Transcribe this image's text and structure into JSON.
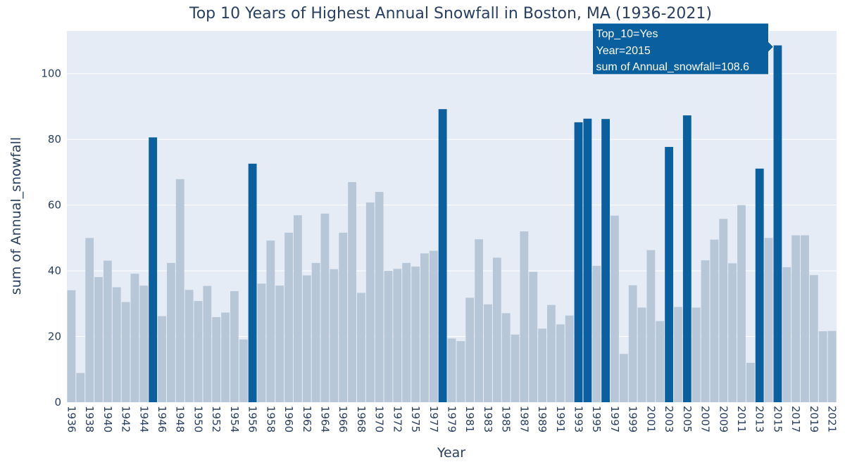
{
  "chart_data": {
    "type": "bar",
    "title": "Top 10 Years of Highest Annual Snowfall in Boston, MA (1936-2021)",
    "xlabel": "Year",
    "ylabel": "sum of Annual_snowfall",
    "ylim": [
      0,
      113
    ],
    "yticks": [
      0,
      20,
      40,
      60,
      80,
      100
    ],
    "grid": true,
    "legend": "none",
    "colors": {
      "top10": "#0a5f9e",
      "other": "#b7c7d8",
      "plot_bg": "#e5ecf6",
      "text": "#2a3f5f"
    },
    "categories": [
      "1936",
      "1937",
      "1938",
      "1939",
      "1940",
      "1941",
      "1942",
      "1943",
      "1944",
      "1945",
      "1946",
      "1947",
      "1948",
      "1949",
      "1950",
      "1951",
      "1952",
      "1953",
      "1954",
      "1955",
      "1956",
      "1957",
      "1958",
      "1959",
      "1960",
      "1961",
      "1962",
      "1963",
      "1964",
      "1965",
      "1966",
      "1967",
      "1968",
      "1969",
      "1970",
      "1971",
      "1972",
      "1973",
      "1975",
      "1976",
      "1977",
      "1978",
      "1979",
      "1980",
      "1981",
      "1982",
      "1983",
      "1984",
      "1985",
      "1986",
      "1987",
      "1988",
      "1989",
      "1990",
      "1991",
      "1992",
      "1993",
      "1994",
      "1995",
      "1996",
      "1997",
      "1998",
      "1999",
      "2000",
      "2001",
      "2002",
      "2003",
      "2004",
      "2005",
      "2006",
      "2007",
      "2008",
      "2009",
      "2010",
      "2011",
      "2012",
      "2013",
      "2014",
      "2015",
      "2016",
      "2017",
      "2018",
      "2019",
      "2020",
      "2021"
    ],
    "xtick_labels": [
      "1936",
      "1938",
      "1940",
      "1942",
      "1944",
      "1946",
      "1948",
      "1950",
      "1952",
      "1954",
      "1956",
      "1958",
      "1960",
      "1962",
      "1964",
      "1966",
      "1968",
      "1970",
      "1972",
      "1975",
      "1977",
      "1979",
      "1981",
      "1983",
      "1985",
      "1987",
      "1989",
      "1991",
      "1993",
      "1995",
      "1997",
      "1999",
      "2001",
      "2003",
      "2005",
      "2007",
      "2009",
      "2011",
      "2013",
      "2015",
      "2017",
      "2019",
      "2021"
    ],
    "values": [
      34.1,
      8.9,
      50.0,
      38.1,
      43.1,
      35.0,
      30.5,
      39.1,
      35.5,
      80.6,
      26.2,
      42.4,
      67.9,
      34.2,
      30.8,
      35.4,
      25.9,
      27.3,
      33.8,
      19.1,
      72.6,
      36.1,
      49.2,
      35.5,
      51.6,
      56.9,
      38.6,
      42.4,
      57.4,
      40.5,
      51.6,
      67.0,
      33.3,
      60.8,
      64.0,
      40.0,
      40.6,
      42.4,
      41.3,
      45.3,
      46.1,
      89.2,
      19.4,
      18.6,
      31.8,
      49.6,
      29.8,
      44.0,
      27.1,
      20.6,
      52.0,
      39.7,
      22.4,
      29.6,
      23.7,
      26.4,
      85.2,
      86.3,
      41.5,
      86.2,
      56.8,
      14.7,
      35.6,
      28.8,
      46.3,
      24.7,
      77.7,
      29.0,
      87.3,
      28.8,
      43.2,
      49.5,
      55.8,
      42.3,
      60.0,
      12.0,
      71.1,
      50.0,
      108.6,
      41.1,
      50.8,
      50.8,
      38.7,
      21.6,
      21.7
    ],
    "top_10": [
      "No",
      "No",
      "No",
      "No",
      "No",
      "No",
      "No",
      "No",
      "No",
      "Yes",
      "No",
      "No",
      "No",
      "No",
      "No",
      "No",
      "No",
      "No",
      "No",
      "No",
      "Yes",
      "No",
      "No",
      "No",
      "No",
      "No",
      "No",
      "No",
      "No",
      "No",
      "No",
      "No",
      "No",
      "No",
      "No",
      "No",
      "No",
      "No",
      "No",
      "No",
      "No",
      "Yes",
      "No",
      "No",
      "No",
      "No",
      "No",
      "No",
      "No",
      "No",
      "No",
      "No",
      "No",
      "No",
      "No",
      "No",
      "Yes",
      "Yes",
      "No",
      "Yes",
      "No",
      "No",
      "No",
      "No",
      "No",
      "No",
      "Yes",
      "No",
      "Yes",
      "No",
      "No",
      "No",
      "No",
      "No",
      "No",
      "No",
      "Yes",
      "No",
      "Yes",
      "No",
      "No",
      "No",
      "No",
      "No",
      "No"
    ],
    "tooltip": {
      "line1": "Top_10=Yes",
      "line2": "Year=2015",
      "line3": "sum of Annual_snowfall=108.6",
      "category": "2015"
    }
  }
}
